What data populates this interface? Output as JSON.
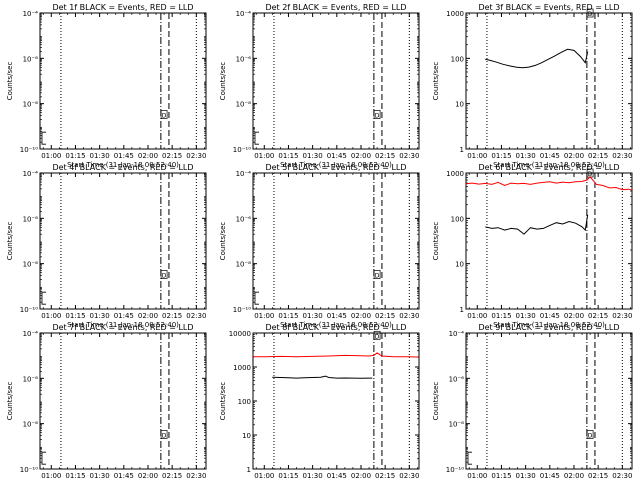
{
  "colors": {
    "events": "#000000",
    "lld": "#ff0000",
    "background": "#ffffff",
    "axes": "#000000"
  },
  "x_axis": {
    "xlabel": "Start Time (31-Jan-18 00:52:40)",
    "tick_labels": [
      "01:00",
      "01:15",
      "01:30",
      "01:45",
      "02:00",
      "02:15",
      "02:30"
    ],
    "tick_minutes": [
      60,
      75,
      90,
      105,
      120,
      135,
      150
    ]
  },
  "chart_data": [
    {
      "type": "line",
      "title": "Det 1f BLACK = Events, RED = LLD",
      "xlabel": "Start Time (31-Jan-18 00:52:40)",
      "ylabel": "Counts/sec",
      "xlim": [
        53,
        156
      ],
      "ylim": [
        1e-10,
        0.0001
      ],
      "yscale": "log",
      "ytick_labels": [
        "10⁻⁴",
        "10⁻⁶",
        "10⁻⁸",
        "10⁻¹⁰"
      ],
      "ytick_values": [
        0.0001,
        1e-06,
        1e-08,
        1e-10
      ],
      "dotted_lines": [
        66,
        150
      ],
      "dashdot_line": 128,
      "dashed_line": 133,
      "annotations": [
        {
          "text": "D",
          "x": 130,
          "y": 3e-09
        }
      ],
      "series": []
    },
    {
      "type": "line",
      "title": "Det 2f BLACK = Events, RED = LLD",
      "xlabel": "Start Time (31-Jan-18 00:52:40)",
      "ylabel": "Counts/sec",
      "xlim": [
        53,
        156
      ],
      "ylim": [
        1e-10,
        0.0001
      ],
      "yscale": "log",
      "ytick_labels": [
        "10⁻⁴",
        "10⁻⁶",
        "10⁻⁸",
        "10⁻¹⁰"
      ],
      "ytick_values": [
        0.0001,
        1e-06,
        1e-08,
        1e-10
      ],
      "dotted_lines": [
        66,
        150
      ],
      "dashdot_line": 128,
      "dashed_line": 133,
      "annotations": [
        {
          "text": "D",
          "x": 130,
          "y": 3e-09
        }
      ],
      "series": []
    },
    {
      "type": "line",
      "title": "Det 3f BLACK = Events, RED = LLD",
      "xlabel": "Start Time (31-Jan-18 00:52:40)",
      "ylabel": "Counts/sec",
      "xlim": [
        53,
        156
      ],
      "ylim": [
        1,
        1000
      ],
      "yscale": "log",
      "ytick_labels": [
        "1000",
        "100",
        "10",
        "1"
      ],
      "ytick_values": [
        1000,
        100,
        10,
        1
      ],
      "dotted_lines": [
        66,
        150
      ],
      "dashdot_line": 128,
      "dashed_line": 133,
      "annotations": [
        {
          "text": "D",
          "x": 130,
          "y": 950
        }
      ],
      "series": [
        {
          "color": "#000000",
          "x": [
            65,
            68,
            72,
            76,
            80,
            84,
            88,
            92,
            96,
            100,
            104,
            108,
            112,
            116,
            120,
            124,
            127,
            128.5
          ],
          "y": [
            95,
            90,
            82,
            74,
            68,
            64,
            62,
            64,
            70,
            80,
            95,
            112,
            135,
            158,
            150,
            110,
            80,
            140
          ]
        }
      ]
    },
    {
      "type": "line",
      "title": "Det 4f BLACK = Events, RED = LLD",
      "xlabel": "Start Time (31-Jan-18 00:52:40)",
      "ylabel": "Counts/sec",
      "xlim": [
        53,
        156
      ],
      "ylim": [
        1e-10,
        0.0001
      ],
      "yscale": "log",
      "ytick_labels": [
        "10⁻⁴",
        "10⁻⁶",
        "10⁻⁸",
        "10⁻¹⁰"
      ],
      "ytick_values": [
        0.0001,
        1e-06,
        1e-08,
        1e-10
      ],
      "dotted_lines": [
        66,
        150
      ],
      "dashdot_line": 128,
      "dashed_line": 133,
      "annotations": [
        {
          "text": "D",
          "x": 130,
          "y": 3e-09
        }
      ],
      "series": []
    },
    {
      "type": "line",
      "title": "Det 5f BLACK = Events, RED = LLD",
      "xlabel": "Start Time (31-Jan-18 00:52:40)",
      "ylabel": "Counts/sec",
      "xlim": [
        53,
        156
      ],
      "ylim": [
        1e-10,
        0.0001
      ],
      "yscale": "log",
      "ytick_labels": [
        "10⁻⁴",
        "10⁻⁶",
        "10⁻⁸",
        "10⁻¹⁰"
      ],
      "ytick_values": [
        0.0001,
        1e-06,
        1e-08,
        1e-10
      ],
      "dotted_lines": [
        66,
        150
      ],
      "dashdot_line": 128,
      "dashed_line": 133,
      "annotations": [
        {
          "text": "D",
          "x": 130,
          "y": 3e-09
        }
      ],
      "series": []
    },
    {
      "type": "line",
      "title": "Det 6f BLACK = Events, RED = LLD",
      "xlabel": "Start Time (31-Jan-18 00:52:40)",
      "ylabel": "Counts/sec",
      "xlim": [
        53,
        156
      ],
      "ylim": [
        1,
        1000
      ],
      "yscale": "log",
      "ytick_labels": [
        "1000",
        "100",
        "10",
        "1"
      ],
      "ytick_values": [
        1000,
        100,
        10,
        1
      ],
      "dotted_lines": [
        66,
        150
      ],
      "dashdot_line": 128,
      "dashed_line": 133,
      "annotations": [
        {
          "text": "D",
          "x": 130,
          "y": 950
        }
      ],
      "series": [
        {
          "color": "#ff0000",
          "x": [
            53,
            57,
            61,
            65,
            69,
            73,
            77,
            81,
            85,
            89,
            93,
            97,
            101,
            105,
            109,
            113,
            117,
            121,
            125,
            128,
            130,
            134,
            138,
            142,
            146,
            150,
            154,
            156
          ],
          "y": [
            580,
            600,
            570,
            590,
            560,
            620,
            530,
            600,
            580,
            590,
            560,
            600,
            620,
            640,
            600,
            630,
            610,
            640,
            650,
            700,
            820,
            560,
            530,
            470,
            480,
            430,
            440,
            420
          ]
        },
        {
          "color": "#000000",
          "x": [
            65,
            69,
            73,
            77,
            81,
            85,
            89,
            93,
            97,
            101,
            105,
            109,
            113,
            117,
            121,
            125,
            127,
            128.5
          ],
          "y": [
            65,
            60,
            62,
            55,
            60,
            58,
            45,
            62,
            58,
            60,
            70,
            80,
            75,
            85,
            78,
            65,
            55,
            120
          ]
        }
      ]
    },
    {
      "type": "line",
      "title": "Det 7f BLACK = Events, RED = LLD",
      "xlabel": "Start Time (31-Jan-18 00:52:40)",
      "ylabel": "Counts/sec",
      "xlim": [
        53,
        156
      ],
      "ylim": [
        1e-10,
        0.0001
      ],
      "yscale": "log",
      "ytick_labels": [
        "10⁻⁴",
        "10⁻⁶",
        "10⁻⁸",
        "10⁻¹⁰"
      ],
      "ytick_values": [
        0.0001,
        1e-06,
        1e-08,
        1e-10
      ],
      "dotted_lines": [
        66,
        150
      ],
      "dashdot_line": 128,
      "dashed_line": 133,
      "annotations": [
        {
          "text": "D",
          "x": 130,
          "y": 3e-09
        }
      ],
      "series": []
    },
    {
      "type": "line",
      "title": "Det 8f BLACK = Events, RED = LLD",
      "xlabel": "Start Time (31-Jan-18 00:52:40)",
      "ylabel": "Counts/sec",
      "xlim": [
        53,
        156
      ],
      "ylim": [
        1,
        10000
      ],
      "yscale": "log",
      "ytick_labels": [
        "10000",
        "1000",
        "100",
        "10",
        "1"
      ],
      "ytick_values": [
        10000,
        1000,
        100,
        10,
        1
      ],
      "dotted_lines": [
        66,
        150
      ],
      "dashdot_line": 128,
      "dashed_line": 133,
      "annotations": [
        {
          "text": "D",
          "x": 130,
          "y": 8000
        }
      ],
      "series": [
        {
          "color": "#ff0000",
          "x": [
            53,
            60,
            70,
            80,
            90,
            100,
            110,
            120,
            125,
            128,
            130,
            133,
            140,
            150,
            156
          ],
          "y": [
            2000,
            2000,
            2050,
            2000,
            2050,
            2100,
            2200,
            2150,
            2100,
            2200,
            2600,
            2100,
            2000,
            2000,
            1950
          ]
        },
        {
          "color": "#000000",
          "x": [
            65,
            70,
            75,
            80,
            85,
            90,
            95,
            98,
            100,
            105,
            110,
            115,
            120,
            125,
            127
          ],
          "y": [
            500,
            490,
            480,
            470,
            480,
            490,
            500,
            540,
            490,
            470,
            475,
            470,
            465,
            470,
            470
          ]
        }
      ]
    },
    {
      "type": "line",
      "title": "Det 9f BLACK = Events, RED = LLD",
      "xlabel": "Start Time (31-Jan-18 00:52:40)",
      "ylabel": "Counts/sec",
      "xlim": [
        53,
        156
      ],
      "ylim": [
        1e-10,
        0.0001
      ],
      "yscale": "log",
      "ytick_labels": [
        "10⁻⁴",
        "10⁻⁶",
        "10⁻⁸",
        "10⁻¹⁰"
      ],
      "ytick_values": [
        0.0001,
        1e-06,
        1e-08,
        1e-10
      ],
      "dotted_lines": [
        66,
        150
      ],
      "dashdot_line": 128,
      "dashed_line": 133,
      "annotations": [
        {
          "text": "D",
          "x": 130,
          "y": 3e-09
        }
      ],
      "series": []
    }
  ]
}
